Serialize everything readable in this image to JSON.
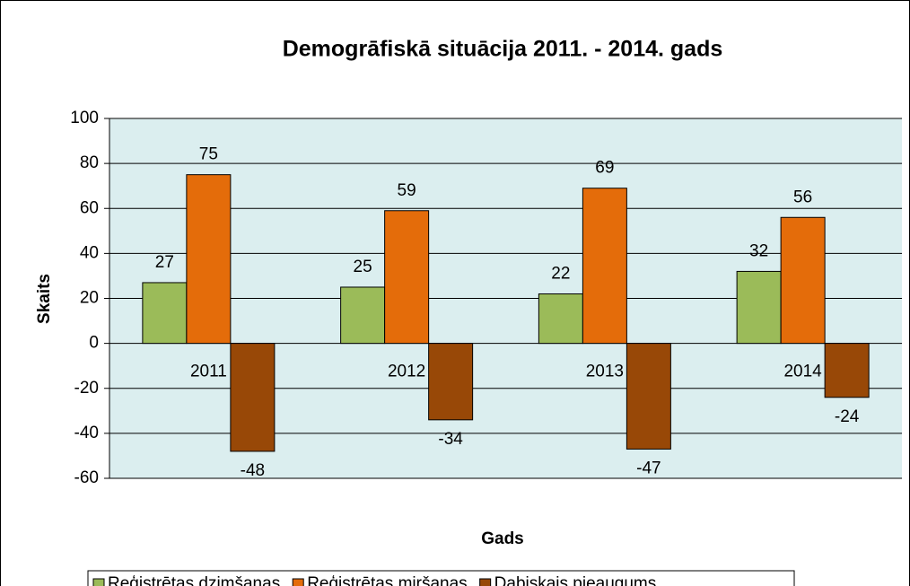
{
  "chart_data": {
    "type": "bar",
    "title": "Demogrāfiskā situācija 2011. - 2014. gads",
    "x_label": "Gads",
    "y_label": "Skaits",
    "categories": [
      "2011",
      "2012",
      "2013",
      "2014"
    ],
    "series": [
      {
        "name": "Reģistrētas dzimšanas",
        "color": "#9bbb59",
        "values": [
          27,
          25,
          22,
          32
        ]
      },
      {
        "name": "Reģistrētas miršanas",
        "color": "#e46c0a",
        "values": [
          75,
          59,
          69,
          56
        ]
      },
      {
        "name": "Dabiskais pieaugums",
        "color": "#984807",
        "values": [
          -48,
          -34,
          -47,
          -24
        ]
      }
    ],
    "ylim": [
      -60,
      100
    ],
    "yticks": [
      -60,
      -40,
      -20,
      0,
      20,
      40,
      60,
      80,
      100
    ],
    "grid": true,
    "legend": "bottom"
  }
}
